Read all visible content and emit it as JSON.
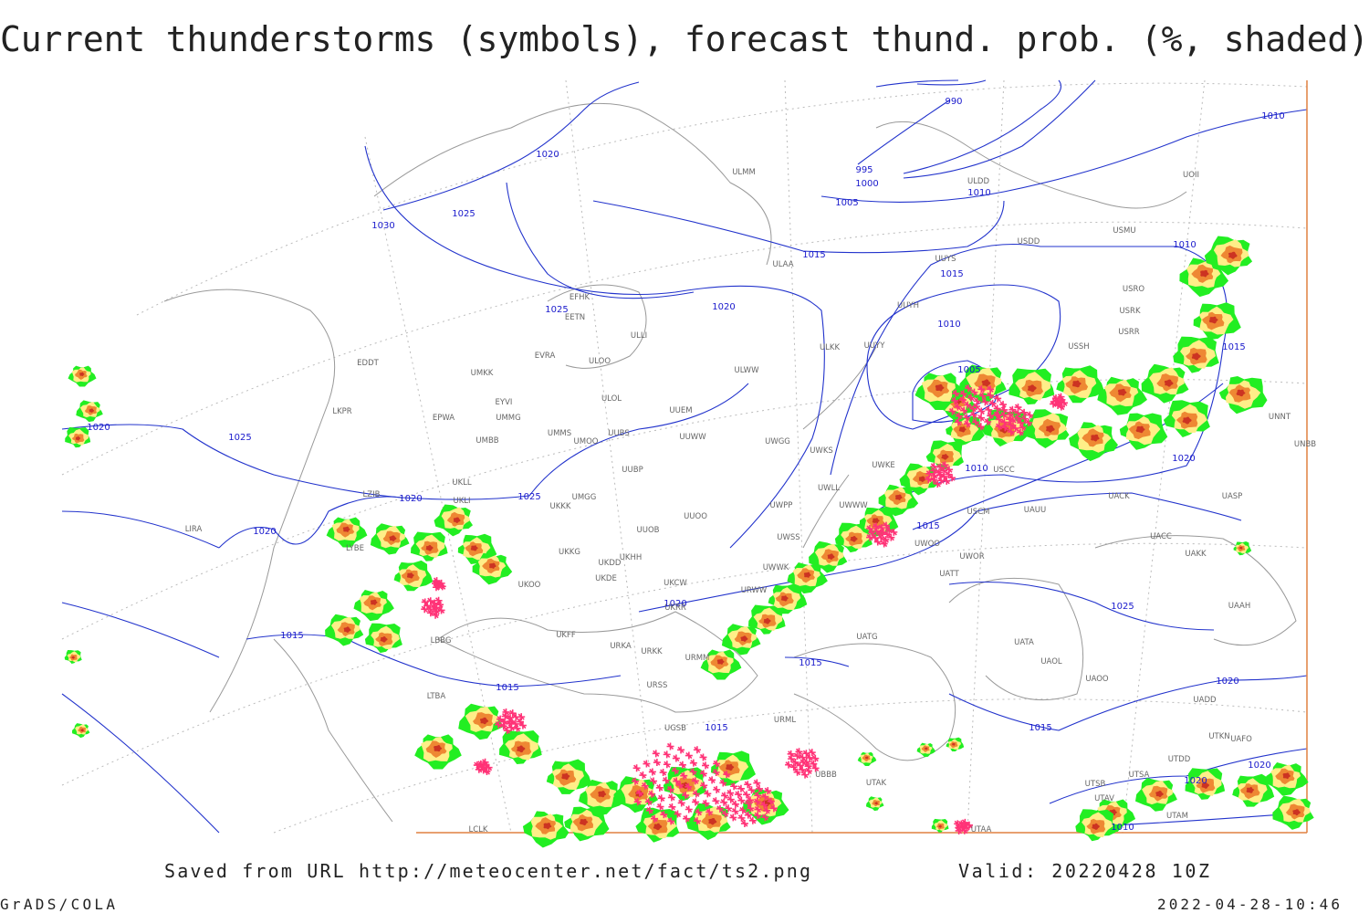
{
  "header": {
    "title": "Current thunderstorms (symbols), forecast thund. prob. (%, shaded)"
  },
  "map": {
    "isobar_labels": [
      "1020",
      "1030",
      "1025",
      "990",
      "995",
      "1000",
      "1005",
      "1010",
      "1010",
      "1015",
      "1015",
      "1020",
      "1025",
      "1010",
      "1005",
      "1010",
      "1015",
      "1020",
      "1010",
      "1015",
      "1020",
      "1025",
      "1025",
      "1020",
      "1020",
      "1020",
      "1025",
      "1015",
      "1015",
      "1015",
      "1015",
      "1020",
      "1015",
      "1020",
      "1020",
      "1010"
    ],
    "station_labels": [
      "ULMM",
      "ULDD",
      "UOII",
      "USMU",
      "USDD",
      "ULAA",
      "UUYS",
      "USRO",
      "USRK",
      "USRR",
      "USSH",
      "UUYH",
      "EFHK",
      "EETN",
      "ULLI",
      "EVRA",
      "ULOO",
      "UUYY",
      "ULKK",
      "EDDT",
      "UMKK",
      "ULWW",
      "ULOL",
      "EYVI",
      "UUEM",
      "LKPR",
      "EPWA",
      "UMMG",
      "UMMS",
      "UMOO",
      "UUBS",
      "UUWW",
      "UMBB",
      "UWGG",
      "UWKS",
      "UNNT",
      "UNBB",
      "UWKE",
      "USCC",
      "UKLL",
      "UUBP",
      "UMGG",
      "UWLL",
      "UACK",
      "UASP",
      "LZIB",
      "UKLI",
      "UKKK",
      "UWPP",
      "UWWW",
      "UAUU",
      "USCM",
      "UUOO",
      "LIRA",
      "UUOB",
      "UWSS",
      "UACC",
      "LYBE",
      "UWOO",
      "UKHH",
      "UKKG",
      "UKDD",
      "UWOR",
      "UAKK",
      "UWWK",
      "UKOO",
      "UKDE",
      "UKCW",
      "UATT",
      "UKRR",
      "URWW",
      "UAAH",
      "LBBG",
      "URKA",
      "UKFF",
      "URKK",
      "UATG",
      "UATA",
      "URMM",
      "UAOL",
      "URSS",
      "UAOO",
      "UADD",
      "LTBA",
      "URML",
      "UTAK",
      "UTDD",
      "UTSB",
      "UTSA",
      "UTAV",
      "UTAA",
      "LCLK",
      "UGSB",
      "UTKN",
      "UAFO",
      "UBBB",
      "UTAM"
    ]
  },
  "footer": {
    "source": "Saved from URL http://meteocenter.net/fact/ts2.png",
    "valid": "Valid: 20220428 10Z",
    "software": "GrADS/COLA",
    "timestamp": "2022-04-28-10:46"
  }
}
